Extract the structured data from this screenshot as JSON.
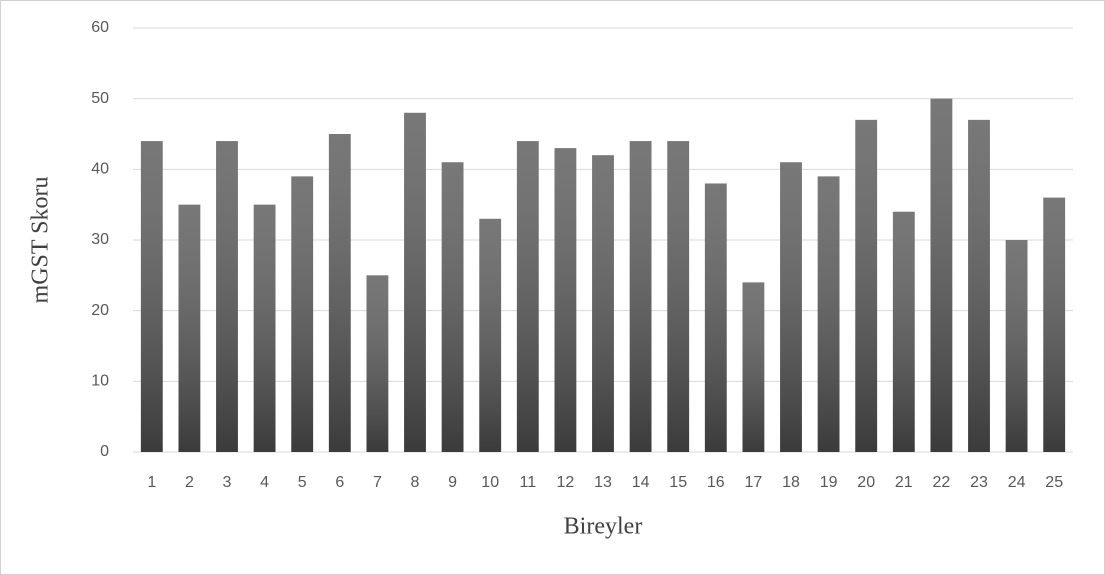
{
  "chart_data": {
    "type": "bar",
    "categories": [
      "1",
      "2",
      "3",
      "4",
      "5",
      "6",
      "7",
      "8",
      "9",
      "10",
      "11",
      "12",
      "13",
      "14",
      "15",
      "16",
      "17",
      "18",
      "19",
      "20",
      "21",
      "22",
      "23",
      "24",
      "25"
    ],
    "values": [
      44,
      35,
      44,
      35,
      39,
      45,
      25,
      48,
      41,
      33,
      44,
      43,
      42,
      44,
      44,
      38,
      24,
      41,
      39,
      47,
      34,
      50,
      47,
      30,
      36
    ],
    "color": "#5a5a5a",
    "ylim": [
      0,
      60
    ],
    "yticks": [
      0,
      10,
      20,
      30,
      40,
      50,
      60
    ],
    "grid": true,
    "y_label": "mGST Skoru",
    "x_label": "Bireyler"
  }
}
